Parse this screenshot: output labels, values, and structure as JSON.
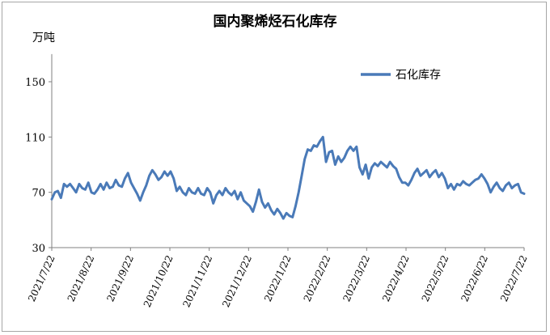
{
  "chart_data": {
    "type": "line",
    "title": "国内聚烯烃石化库存",
    "ylabel": "万吨",
    "xlabel": "",
    "ylim": [
      30,
      170
    ],
    "yticks": [
      30,
      70,
      110,
      150
    ],
    "legend": "top-right",
    "x_tick_labels": [
      "2021/7/22",
      "2021/8/22",
      "2021/9/22",
      "2021/10/22",
      "2021/11/22",
      "2021/12/22",
      "2022/1/22",
      "2022/2/22",
      "2022/3/22",
      "2022/4/22",
      "2022/5/22",
      "2022/6/22",
      "2022/7/22"
    ],
    "series": [
      {
        "name": "石化库存",
        "color": "#4a7ab8",
        "values": [
          65,
          70,
          71,
          66,
          76,
          74,
          76,
          73,
          70,
          76,
          73,
          72,
          77,
          70,
          69,
          72,
          76,
          72,
          77,
          73,
          74,
          79,
          75,
          74,
          80,
          84,
          77,
          73,
          69,
          64,
          70,
          75,
          82,
          86,
          83,
          79,
          81,
          85,
          82,
          85,
          80,
          71,
          74,
          70,
          68,
          73,
          70,
          69,
          73,
          69,
          68,
          73,
          70,
          62,
          68,
          71,
          68,
          73,
          70,
          68,
          71,
          65,
          70,
          64,
          62,
          60,
          56,
          63,
          72,
          63,
          59,
          62,
          57,
          54,
          58,
          55,
          51,
          55,
          53,
          52,
          60,
          70,
          82,
          94,
          101,
          100,
          104,
          103,
          107,
          110,
          92,
          99,
          100,
          90,
          96,
          92,
          95,
          100,
          103,
          100,
          103,
          88,
          83,
          90,
          80,
          88,
          91,
          89,
          92,
          90,
          88,
          92,
          89,
          87,
          81,
          77,
          77,
          75,
          79,
          84,
          87,
          82,
          84,
          86,
          81,
          84,
          86,
          81,
          84,
          80,
          73,
          76,
          72,
          76,
          75,
          78,
          76,
          75,
          77,
          79,
          80,
          83,
          80,
          76,
          70,
          74,
          77,
          73,
          71,
          75,
          77,
          73,
          75,
          76,
          70,
          69
        ]
      }
    ]
  }
}
